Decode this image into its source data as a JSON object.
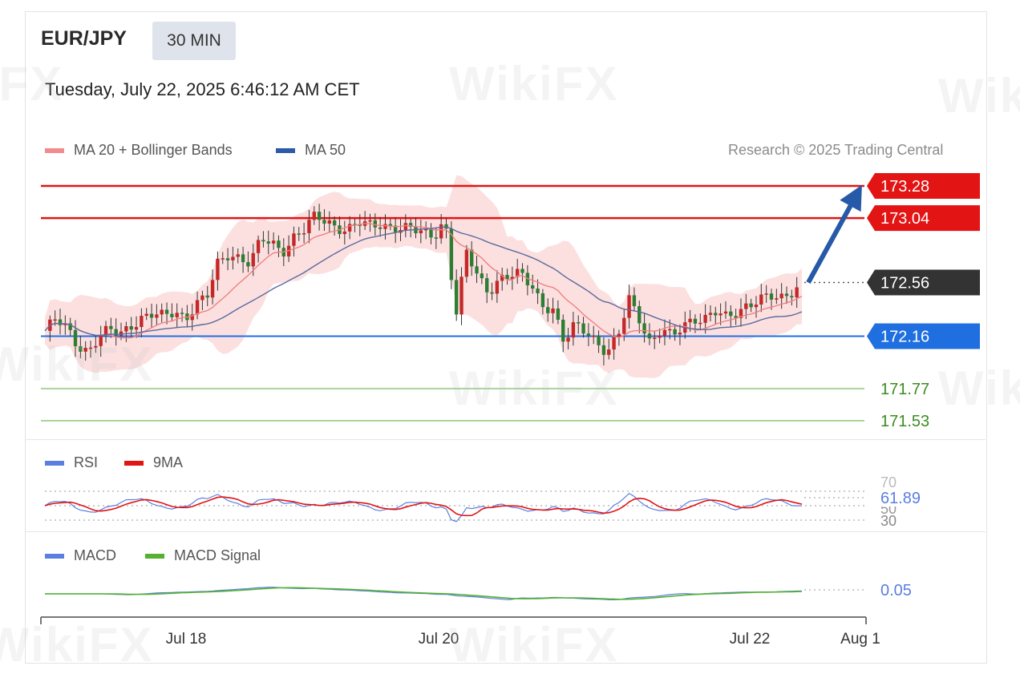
{
  "header": {
    "pair": "EUR/JPY",
    "timeframe": "30 MIN",
    "datetime": "Tuesday, July 22, 2025 6:46:12 AM CET"
  },
  "legend": {
    "bollinger": "MA 20 + Bollinger Bands",
    "ma50": "MA 50",
    "credit": "Research © 2025 Trading Central"
  },
  "rsi_legend": {
    "rsi": "RSI",
    "ma9": "9MA",
    "value": "61.89",
    "tick_70": "70",
    "tick_50": "50",
    "tick_30": "30"
  },
  "macd_legend": {
    "macd": "MACD",
    "signal": "MACD Signal",
    "value": "0.05"
  },
  "colors": {
    "resistance": "#e31414",
    "pivot": "#1f6fe0",
    "support": "#3c8c1e",
    "current": "#333333",
    "bollinger_fill": "#fbd5d5",
    "ma20": "#f08080",
    "ma50": "#5a6a9e",
    "arrow": "#2659a8",
    "candle_up": "#c62828",
    "candle_down": "#2e7d32",
    "rsi": "#5b7fe0",
    "ma9": "#e31414",
    "macd": "#5b7fe0",
    "signal": "#54b22f"
  },
  "chart_data": {
    "type": "candlestick",
    "title": "EUR/JPY 30 MIN",
    "x_tick_labels": [
      "Jul 18",
      "Jul 20",
      "Jul 22",
      "Aug 1"
    ],
    "levels": {
      "resistance": [
        173.28,
        173.04
      ],
      "current": 172.56,
      "pivot": 172.16,
      "support": [
        171.77,
        171.53
      ]
    },
    "level_labels": [
      "173.28",
      "173.04",
      "172.56",
      "172.16",
      "171.77",
      "171.53"
    ],
    "forecast": {
      "direction": "up",
      "from": 172.56,
      "to": 173.28
    },
    "price_range": [
      171.4,
      173.4
    ],
    "price_path": [
      172.2,
      172.28,
      172.22,
      172.1,
      172.05,
      172.15,
      172.2,
      172.18,
      172.25,
      172.3,
      172.32,
      172.3,
      172.35,
      172.3,
      172.4,
      172.45,
      172.7,
      172.78,
      172.75,
      172.7,
      172.88,
      172.85,
      172.8,
      172.9,
      172.95,
      173.05,
      173.02,
      172.98,
      172.95,
      173.0,
      172.98,
      173.0,
      172.98,
      172.96,
      172.95,
      172.93,
      172.92,
      173.03,
      172.3,
      172.78,
      172.62,
      172.5,
      172.58,
      172.6,
      172.62,
      172.55,
      172.4,
      172.35,
      172.1,
      172.25,
      172.22,
      172.12,
      172.02,
      172.15,
      172.45,
      172.3,
      172.1,
      172.2,
      172.15,
      172.25,
      172.3,
      172.28,
      172.33,
      172.3,
      172.35,
      172.4,
      172.42,
      172.45,
      172.44,
      172.5,
      172.56
    ],
    "rsi": {
      "last": 61.89,
      "levels": [
        70,
        50,
        30
      ]
    },
    "macd": {
      "last": 0.05
    }
  }
}
